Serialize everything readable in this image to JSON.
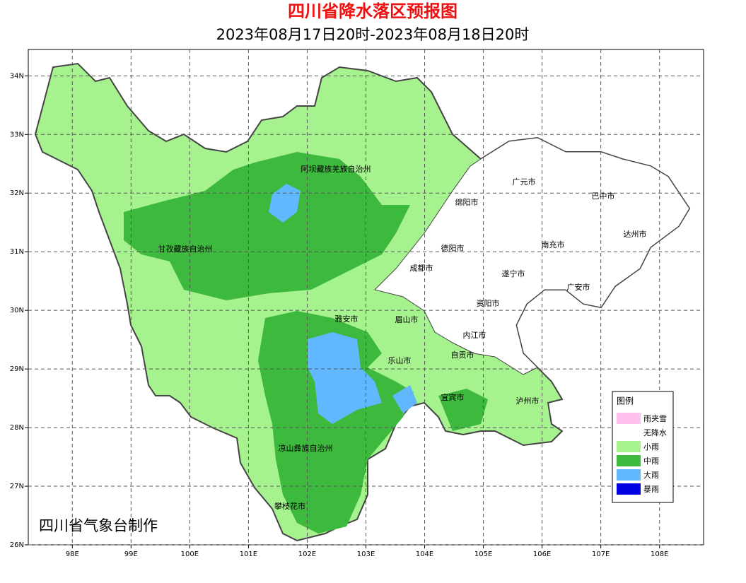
{
  "header": {
    "title": "四川省降水落区预报图",
    "subtitle": "2023年08月17日20时-2023年08月18日20时"
  },
  "map": {
    "xlim": [
      97.25,
      108.75
    ],
    "ylim": [
      26,
      34.45
    ],
    "xticks": [
      {
        "value": 98,
        "label": "98E"
      },
      {
        "value": 99,
        "label": "99E"
      },
      {
        "value": 100,
        "label": "100E"
      },
      {
        "value": 101,
        "label": "101E"
      },
      {
        "value": 102,
        "label": "102E"
      },
      {
        "value": 103,
        "label": "103E"
      },
      {
        "value": 104,
        "label": "104E"
      },
      {
        "value": 105,
        "label": "105E"
      },
      {
        "value": 106,
        "label": "106E"
      },
      {
        "value": 107,
        "label": "107E"
      },
      {
        "value": 108,
        "label": "108E"
      }
    ],
    "yticks": [
      {
        "value": 26,
        "label": "26N"
      },
      {
        "value": 27,
        "label": "27N"
      },
      {
        "value": 28,
        "label": "28N"
      },
      {
        "value": 29,
        "label": "29N"
      },
      {
        "value": 30,
        "label": "30N"
      },
      {
        "value": 31,
        "label": "31N"
      },
      {
        "value": 32,
        "label": "32N"
      },
      {
        "value": 33,
        "label": "33N"
      },
      {
        "value": 34,
        "label": "34N"
      }
    ],
    "grid": true,
    "regions": [
      "阿坝藏族羌族自治州",
      "甘孜藏族自治州",
      "凉山彝族自治州",
      "攀枝花市",
      "雅安市",
      "眉山市",
      "乐山市",
      "成都市",
      "德阳市",
      "绵阳市",
      "广元市",
      "巴中市",
      "达州市",
      "南充市",
      "遂宁市",
      "广安市",
      "资阳市",
      "内江市",
      "自贡市",
      "宜宾市",
      "泸州市"
    ]
  },
  "legend": {
    "title": "图例",
    "items": [
      {
        "name": "雨夹雪",
        "color": "#ffc0ee"
      },
      {
        "name": "无降水",
        "color": "#ffffff"
      },
      {
        "name": "小雨",
        "color": "#a6f28f"
      },
      {
        "name": "中雨",
        "color": "#3dba3d"
      },
      {
        "name": "大雨",
        "color": "#61b8ff"
      },
      {
        "name": "暴雨",
        "color": "#0000e1"
      }
    ]
  },
  "credit": "四川省气象台制作"
}
